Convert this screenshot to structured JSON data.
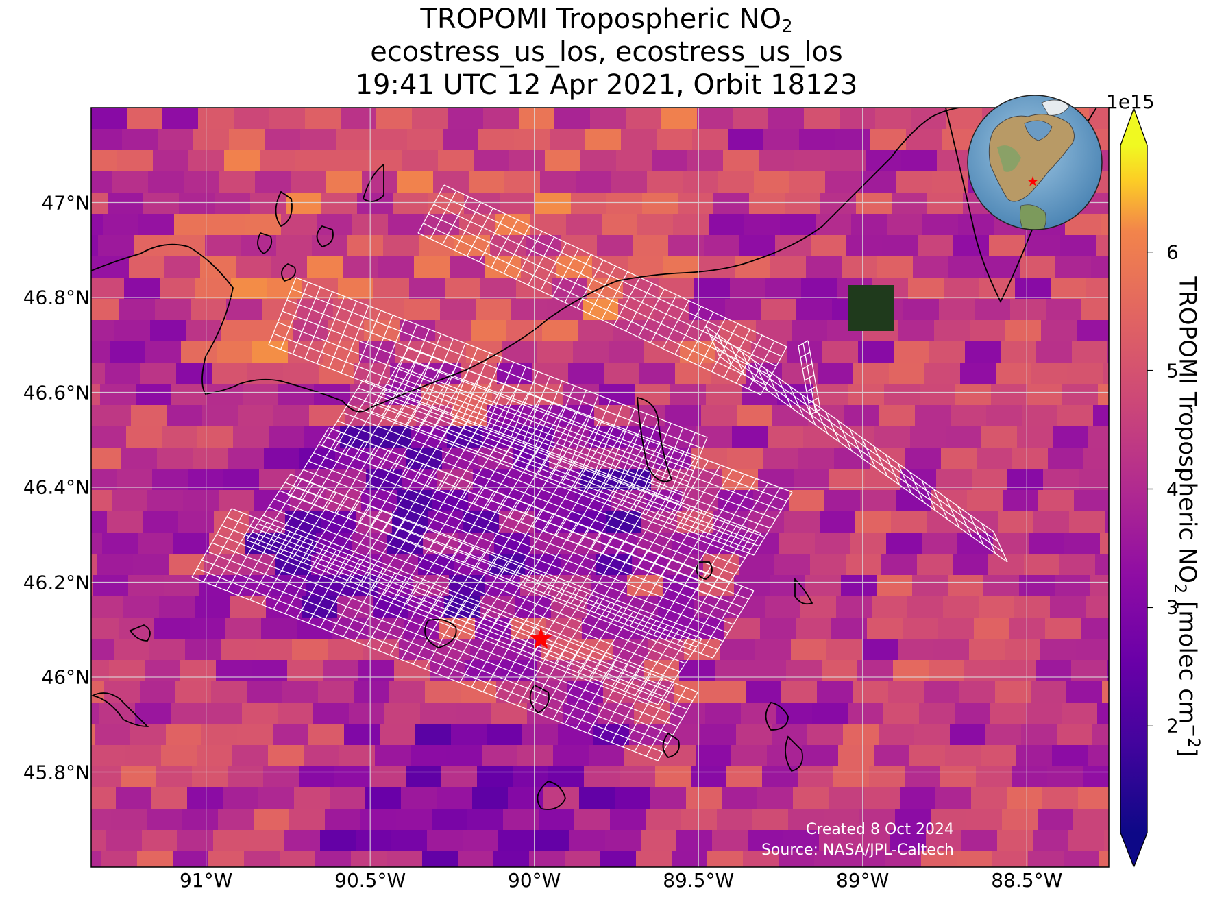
{
  "title": {
    "line1_prefix": "TROPOMI Tropospheric NO",
    "line1_sub": "2",
    "line2": "ecostress_us_los, ecostress_us_los",
    "line3": "19:41 UTC 12 Apr 2021, Orbit 18123"
  },
  "axes": {
    "lat_ticks": [
      "47°N",
      "46.8°N",
      "46.6°N",
      "46.4°N",
      "46.2°N",
      "46°N",
      "45.8°N"
    ],
    "lon_ticks": [
      "91°W",
      "90.5°W",
      "90°W",
      "89.5°W",
      "89°W",
      "88.5°W"
    ]
  },
  "map": {
    "lon_range": [
      -91.35,
      -88.25
    ],
    "lat_range": [
      45.6,
      47.2
    ],
    "gridlines": true,
    "site_marker": {
      "lon": -89.98,
      "lat": 46.08,
      "color": "#ff0000",
      "icon": "star-icon"
    },
    "swath_outline_color": "#ffffff",
    "coastline_color": "#000000",
    "inset_globe": {
      "icon": "globe-icon",
      "marker_color": "#ff0000"
    }
  },
  "colorbar": {
    "exponent": "1e15",
    "ticks": [
      "2",
      "3",
      "4",
      "5",
      "6"
    ],
    "tick_values": [
      2,
      3,
      4,
      5,
      6
    ],
    "range": [
      1.1,
      6.9
    ],
    "colormap": "plasma",
    "label_prefix": "TROPOMI Tropospheric NO",
    "label_sub": "2",
    "label_mid": " [molec cm",
    "label_sup": "−2",
    "label_end": "]"
  },
  "credits": {
    "created": "Created 8 Oct 2024",
    "source": "Source: NASA/JPL-Caltech"
  }
}
